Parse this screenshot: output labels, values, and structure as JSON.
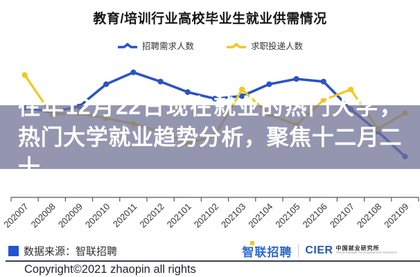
{
  "title": "教育/培训行业高校毕业生就业供需情况",
  "legend": [
    {
      "label": "招聘需求人数",
      "color": "#2B52C8"
    },
    {
      "label": "求职投递人数",
      "color": "#F2C81F"
    }
  ],
  "overlay_text": "往年12月22日现在就业的热门大学，热门大学就业趋势分析，聚焦十二月二十",
  "chart_data": {
    "type": "line",
    "title": "教育/培训行业高校毕业生就业供需情况",
    "xlabel": "",
    "ylabel": "",
    "categories": [
      "202007",
      "202008",
      "202009",
      "202010",
      "202011",
      "202012",
      "202101",
      "202102",
      "202103",
      "202104",
      "202105",
      "202106",
      "202107",
      "202108",
      "202109"
    ],
    "series": [
      {
        "name": "招聘需求人数",
        "color": "#2B52C8",
        "values": [
          68,
          65,
          69,
          86,
          95,
          88,
          80,
          75,
          77,
          86,
          90,
          88,
          67,
          50,
          31
        ]
      },
      {
        "name": "求职投递人数",
        "color": "#F2C81F",
        "values": [
          93,
          63,
          64,
          60,
          56,
          50,
          41,
          47,
          82,
          63,
          55,
          74,
          82,
          52,
          64
        ]
      }
    ],
    "ylim": [
      0,
      100
    ],
    "y_axis_visible": false,
    "grid": false,
    "legend_position": "top"
  },
  "colors": {
    "axis": "#555555",
    "tick_label": "#333333",
    "banner_text": "#ffffff"
  },
  "footer": {
    "source_label": "数据来源：智联招聘",
    "logo_zhaopin": "智联招聘",
    "logo_cier": "CIER",
    "logo_cier_cn": "中国就业研究所",
    "logo_cier_en": "China Institute for Employment Research",
    "copyright": "Copyright©2021 zhaopin all rights"
  }
}
